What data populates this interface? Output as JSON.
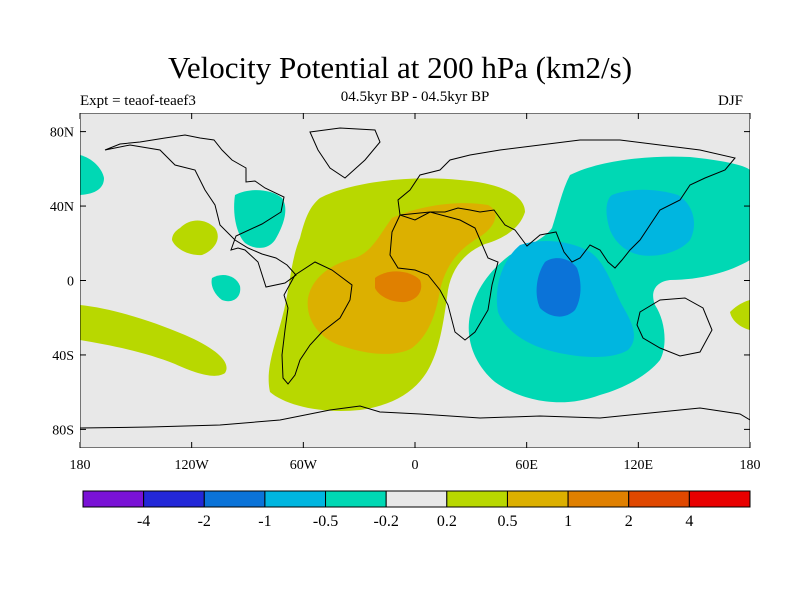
{
  "title": "Velocity Potential at 200 hPa (km2/s)",
  "subtitle": "04.5kyr BP - 04.5kyr BP",
  "left_label": "Expt = teaof-teaef3",
  "right_label": "DJF",
  "lat_ticks": [
    {
      "lat": 80,
      "label": "80N"
    },
    {
      "lat": 40,
      "label": "40N"
    },
    {
      "lat": 0,
      "label": "0"
    },
    {
      "lat": -40,
      "label": "40S"
    },
    {
      "lat": -80,
      "label": "80S"
    }
  ],
  "lon_ticks": [
    {
      "lon": -180,
      "label": "180"
    },
    {
      "lon": -120,
      "label": "120W"
    },
    {
      "lon": -60,
      "label": "60W"
    },
    {
      "lon": 0,
      "label": "0"
    },
    {
      "lon": 60,
      "label": "60E"
    },
    {
      "lon": 120,
      "label": "120E"
    },
    {
      "lon": 180,
      "label": "180"
    }
  ],
  "colorbar": {
    "colors": [
      "#7a12d6",
      "#2328d8",
      "#0b73d8",
      "#00b6e0",
      "#00d8b4",
      "#e8e8e8",
      "#b8d800",
      "#dcb000",
      "#e08000",
      "#e04800",
      "#e80000"
    ],
    "labels": [
      "-4",
      "-2",
      "-1",
      "-0.5",
      "-0.2",
      "0.2",
      "0.5",
      "1",
      "2",
      "4"
    ]
  }
}
